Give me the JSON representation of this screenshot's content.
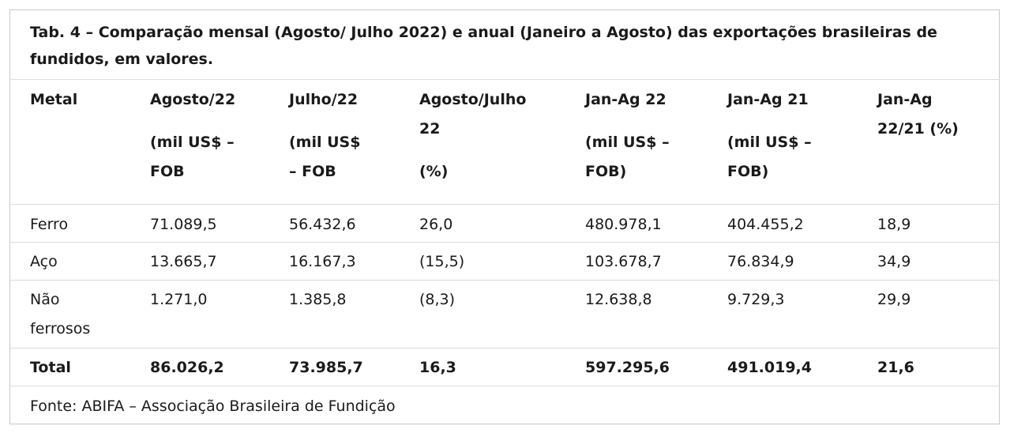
{
  "table": {
    "title": "Tab. 4 – Comparação mensal (Agosto/ Julho 2022) e anual (Janeiro a Agosto) das exportações brasileiras de fundidos, em valores.",
    "header": [
      [
        "Metal"
      ],
      [
        "Agosto/22",
        "(mil US$ –",
        "FOB"
      ],
      [
        "Julho/22",
        "(mil US$",
        "– FOB"
      ],
      [
        "Agosto/Julho",
        "22",
        "(%)"
      ],
      [
        "Jan-Ag 22",
        "(mil US$ –",
        "FOB)"
      ],
      [
        "Jan-Ag 21",
        "(mil US$ –",
        "FOB)"
      ],
      [
        "Jan-Ag",
        "22/21 (%)"
      ]
    ],
    "rows": [
      [
        "Ferro",
        "71.089,5",
        "56.432,6",
        "26,0",
        "480.978,1",
        "404.455,2",
        "18,9"
      ],
      [
        "Aço",
        "13.665,7",
        "16.167,3",
        "(15,5)",
        "103.678,7",
        "76.834,9",
        "34,9"
      ],
      [
        "Não ferrosos",
        "1.271,0",
        "1.385,8",
        "(8,3)",
        "12.638,8",
        "9.729,3",
        "29,9"
      ],
      [
        "Total",
        "86.026,2",
        "73.985,7",
        "16,3",
        "597.295,6",
        "491.019,4",
        "21,6"
      ]
    ],
    "source": "Fonte: ABIFA – Associação Brasileira de Fundição"
  }
}
